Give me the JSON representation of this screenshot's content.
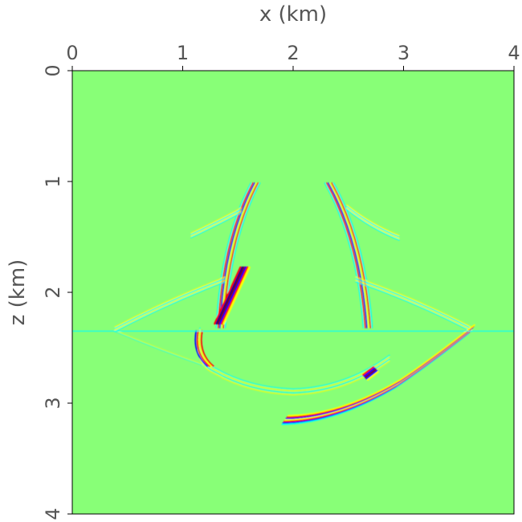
{
  "chart_data": {
    "type": "heatmap",
    "title": "",
    "xlabel": "x (km)",
    "ylabel": "z (km)",
    "xlim": [
      0,
      4
    ],
    "ylim": [
      0,
      4
    ],
    "x_axis_position": "top",
    "y_axis_inverted": true,
    "x_ticks": [
      "0",
      "1",
      "2",
      "3",
      "4"
    ],
    "y_ticks": [
      "0",
      "1",
      "2",
      "3",
      "4"
    ],
    "colormap": [
      "#00008f",
      "#0000ff",
      "#00ffff",
      "#88ff77",
      "#ffff00",
      "#ff0000",
      "#800000"
    ],
    "background_color": "#88ff77",
    "reflector_depth_km": 2.35,
    "grid": false,
    "legend": "none"
  }
}
